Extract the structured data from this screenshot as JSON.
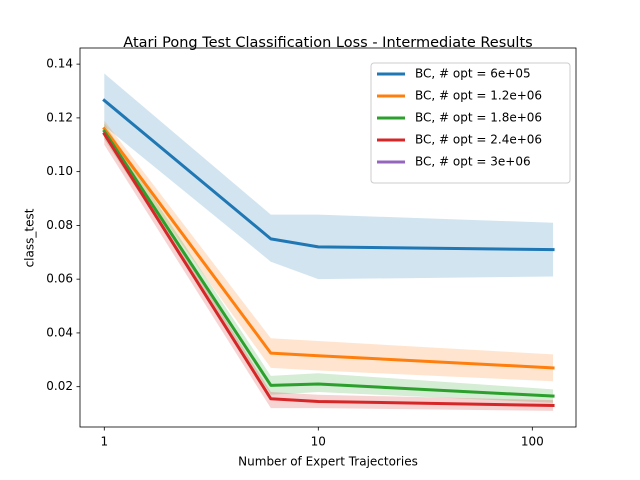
{
  "chart_data": {
    "type": "line",
    "title": "Atari Pong Test Classification Loss - Intermediate Results",
    "xlabel": "Number of Expert Trajectories",
    "ylabel": "class_test",
    "x": [
      1,
      6,
      10,
      125
    ],
    "xscale": "log",
    "xlim": [
      0.77,
      160
    ],
    "xticks": [
      1,
      10,
      100
    ],
    "ylim": [
      0.005,
      0.146
    ],
    "yticks": [
      {
        "value": 0.02,
        "label": "0.02"
      },
      {
        "value": 0.04,
        "label": "0.04"
      },
      {
        "value": 0.06,
        "label": "0.06"
      },
      {
        "value": 0.08,
        "label": "0.08"
      },
      {
        "value": 0.1,
        "label": "0.10"
      },
      {
        "value": 0.12,
        "label": "0.12"
      },
      {
        "value": 0.14,
        "label": "0.14"
      }
    ],
    "legend": "upper right",
    "series": [
      {
        "name": "BC, # opt = 6e+05",
        "color": "#1f77b4",
        "values": [
          0.1265,
          0.075,
          0.072,
          0.071
        ],
        "lower": [
          0.117,
          0.0665,
          0.06,
          0.061
        ],
        "upper": [
          0.1365,
          0.084,
          0.084,
          0.081
        ]
      },
      {
        "name": "BC, # opt = 1.2e+06",
        "color": "#ff7f0e",
        "values": [
          0.116,
          0.0325,
          0.0315,
          0.027
        ],
        "lower": [
          0.113,
          0.027,
          0.026,
          0.022
        ],
        "upper": [
          0.119,
          0.038,
          0.037,
          0.032
        ]
      },
      {
        "name": "BC, # opt = 1.8e+06",
        "color": "#2ca02c",
        "values": [
          0.115,
          0.0205,
          0.021,
          0.0165
        ],
        "lower": [
          0.112,
          0.017,
          0.018,
          0.014
        ],
        "upper": [
          0.118,
          0.024,
          0.025,
          0.019
        ]
      },
      {
        "name": "BC, # opt = 2.4e+06",
        "color": "#d62728",
        "values": [
          0.114,
          0.0155,
          0.0145,
          0.013
        ],
        "lower": [
          0.11,
          0.012,
          0.012,
          0.011
        ],
        "upper": [
          0.117,
          0.018,
          0.017,
          0.015
        ]
      },
      {
        "name": "BC, # opt = 3e+06",
        "color": "#9467bd",
        "values": [
          null,
          null,
          null,
          null
        ]
      }
    ]
  }
}
